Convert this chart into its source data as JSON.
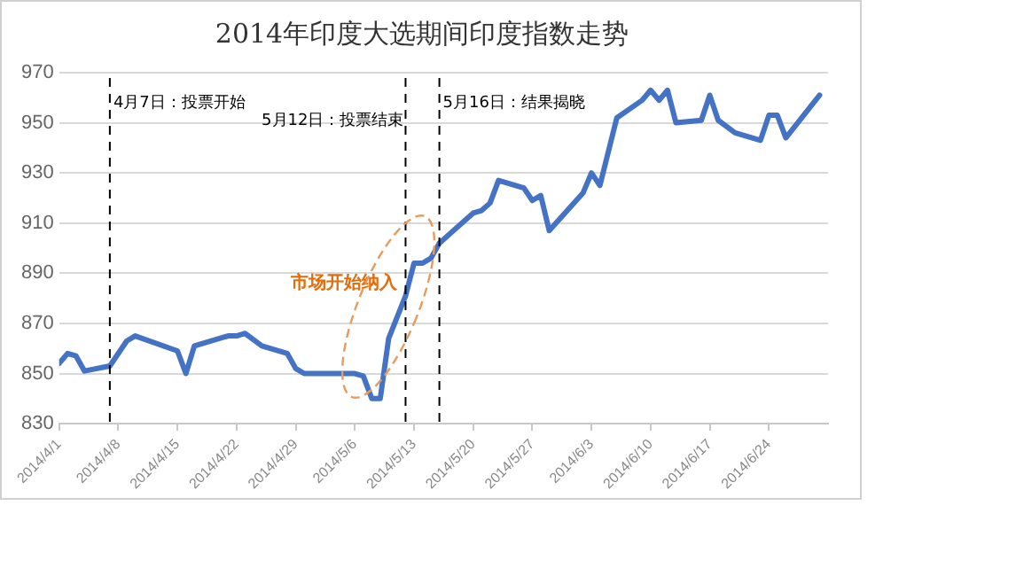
{
  "chart_data": {
    "type": "line",
    "title": "2014年印度大选期间印度指数走势",
    "x": [
      "2014-04-01",
      "2014-04-02",
      "2014-04-03",
      "2014-04-04",
      "2014-04-07",
      "2014-04-09",
      "2014-04-10",
      "2014-04-15",
      "2014-04-16",
      "2014-04-17",
      "2014-04-21",
      "2014-04-22",
      "2014-04-23",
      "2014-04-25",
      "2014-04-28",
      "2014-04-29",
      "2014-04-30",
      "2014-05-02",
      "2014-05-06",
      "2014-05-07",
      "2014-05-08",
      "2014-05-09",
      "2014-05-10",
      "2014-05-12",
      "2014-05-13",
      "2014-05-14",
      "2014-05-15",
      "2014-05-16",
      "2014-05-20",
      "2014-05-21",
      "2014-05-22",
      "2014-05-23",
      "2014-05-26",
      "2014-05-27",
      "2014-05-28",
      "2014-05-29",
      "2014-06-02",
      "2014-06-03",
      "2014-06-04",
      "2014-06-06",
      "2014-06-09",
      "2014-06-10",
      "2014-06-11",
      "2014-06-12",
      "2014-06-13",
      "2014-06-16",
      "2014-06-17",
      "2014-06-18",
      "2014-06-20",
      "2014-06-23",
      "2014-06-24",
      "2014-06-25",
      "2014-06-26",
      "2014-06-30"
    ],
    "series": [
      {
        "color": "#4472c4",
        "values": [
          854,
          858,
          857,
          851,
          853,
          863,
          865,
          859,
          850,
          861,
          865,
          865,
          866,
          861,
          858,
          852,
          850,
          850,
          850,
          849,
          840,
          840,
          864,
          881,
          894,
          894,
          896,
          902,
          914,
          915,
          918,
          927,
          924,
          919,
          921,
          907,
          922,
          930,
          925,
          952,
          959,
          963,
          959,
          963,
          950,
          951,
          961,
          951,
          946,
          943,
          953,
          953,
          944,
          961
        ]
      }
    ],
    "xlim": [
      "2014-04-01",
      "2014-07-01"
    ],
    "xticks": [
      {
        "value": "2014-04-01",
        "label": "2014/4/1"
      },
      {
        "value": "2014-04-08",
        "label": "2014/4/8"
      },
      {
        "value": "2014-04-15",
        "label": "2014/4/15"
      },
      {
        "value": "2014-04-22",
        "label": "2014/4/22"
      },
      {
        "value": "2014-04-29",
        "label": "2014/4/29"
      },
      {
        "value": "2014-05-06",
        "label": "2014/5/6"
      },
      {
        "value": "2014-05-13",
        "label": "2014/5/13"
      },
      {
        "value": "2014-05-20",
        "label": "2014/5/20"
      },
      {
        "value": "2014-05-27",
        "label": "2014/5/27"
      },
      {
        "value": "2014-06-03",
        "label": "2014/6/3"
      },
      {
        "value": "2014-06-10",
        "label": "2014/6/10"
      },
      {
        "value": "2014-06-17",
        "label": "2014/6/17"
      },
      {
        "value": "2014-06-24",
        "label": "2014/6/24"
      }
    ],
    "ylim": [
      830,
      970
    ],
    "yticks": [
      830,
      850,
      870,
      890,
      910,
      930,
      950,
      970
    ],
    "grid": "y",
    "legend": false,
    "marker": "none",
    "line_style": "solid",
    "ref_lines": [
      {
        "axis": "x",
        "value": "2014-04-07",
        "label": "4月7日：投票开始",
        "line_style": "dashed",
        "color": "#000000"
      },
      {
        "axis": "x",
        "value": "2014-05-12",
        "label": "5月12日：投票结束",
        "line_style": "dashed",
        "color": "#000000"
      },
      {
        "axis": "x",
        "value": "2014-05-16",
        "label": "5月16日：结果揭晓",
        "line_style": "dashed",
        "color": "#000000"
      }
    ],
    "annotations": [
      "市场开始纳入"
    ]
  }
}
